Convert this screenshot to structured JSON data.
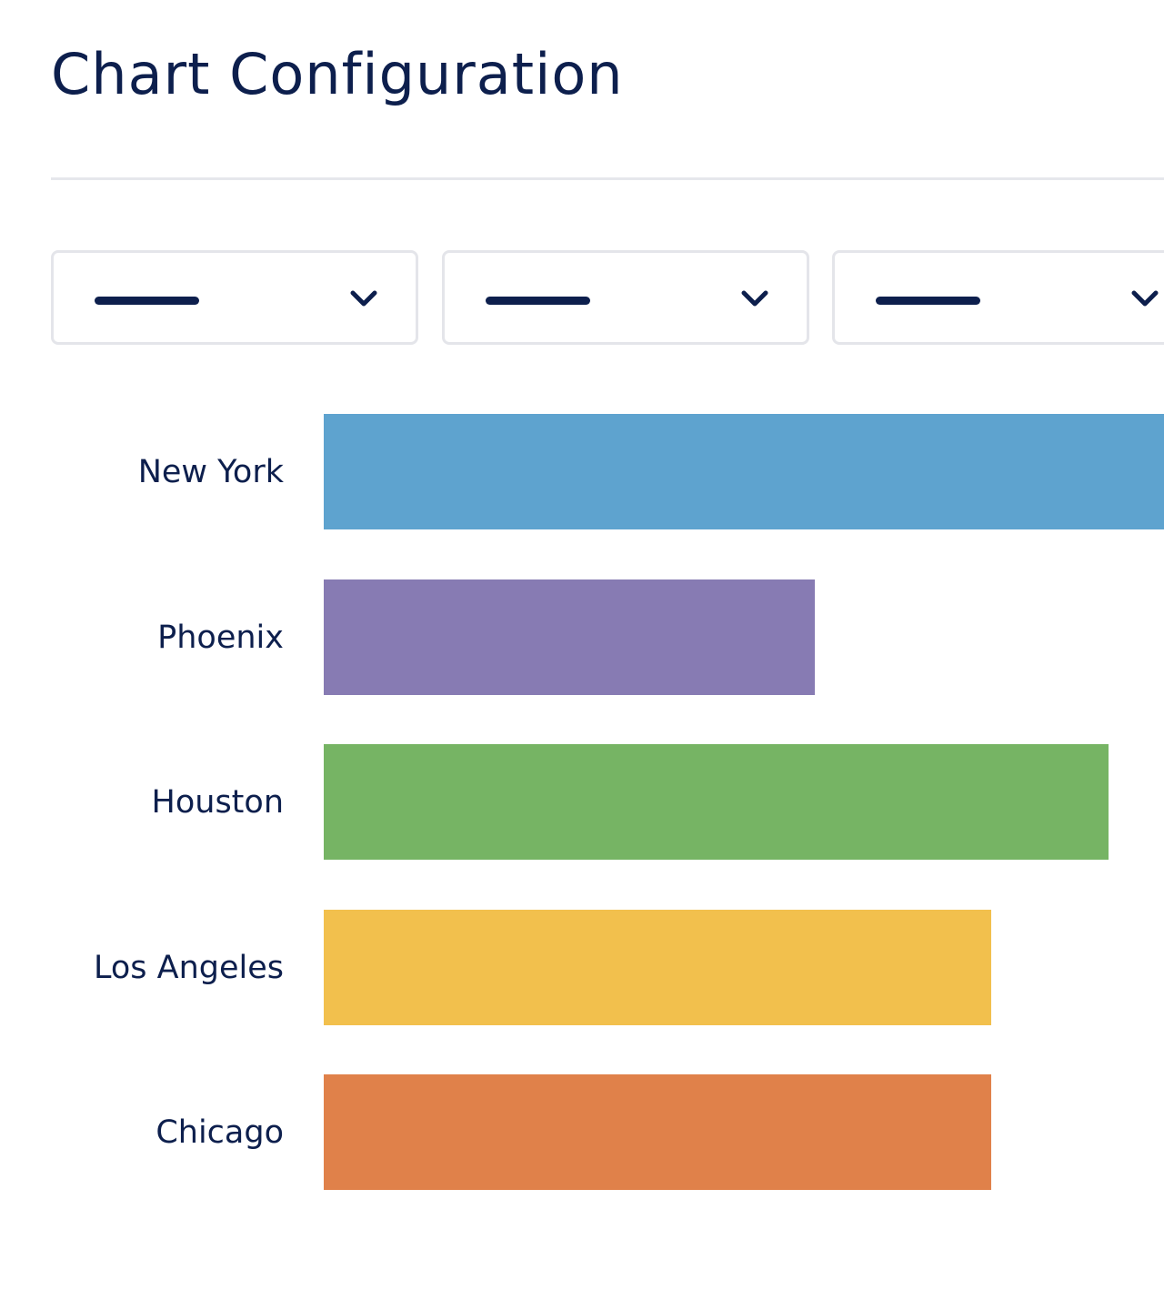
{
  "header": {
    "title": "Chart Configuration"
  },
  "controls": {
    "dropdowns": [
      {
        "value": "",
        "icon": "chevron-down-icon"
      },
      {
        "value": "",
        "icon": "chevron-down-icon"
      },
      {
        "value": "",
        "icon": "chevron-down-icon"
      }
    ]
  },
  "chart_data": {
    "type": "bar",
    "orientation": "horizontal",
    "categories": [
      "New York",
      "Phoenix",
      "Houston",
      "Los Angeles",
      "Chicago"
    ],
    "values": [
      100,
      58.4,
      93.4,
      79.4,
      79.4
    ],
    "colors": [
      "#5ea3cf",
      "#877bb3",
      "#76b464",
      "#f2c04d",
      "#e0814a"
    ],
    "xlim": [
      0,
      100
    ],
    "grid": false,
    "legend": "none"
  }
}
